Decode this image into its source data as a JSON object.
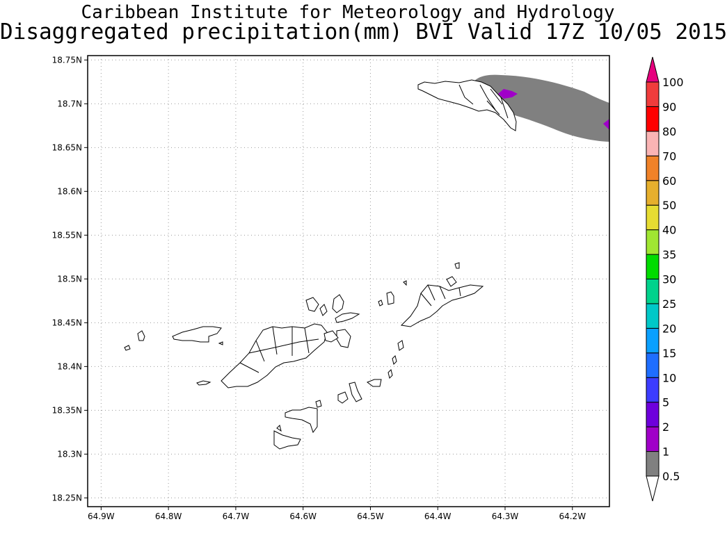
{
  "title": {
    "line1": "Caribbean Institute for Meteorology and Hydrology",
    "line2": "Disaggregated precipitation(mm) BVI Valid 17Z 10/05 2015"
  },
  "map": {
    "lon_range": [
      -64.92,
      -64.145
    ],
    "lat_range": [
      18.24,
      18.755
    ],
    "lon_ticks": [
      {
        "value": -64.9,
        "label": "64.9W"
      },
      {
        "value": -64.8,
        "label": "64.8W"
      },
      {
        "value": -64.7,
        "label": "64.7W"
      },
      {
        "value": -64.6,
        "label": "64.6W"
      },
      {
        "value": -64.5,
        "label": "64.5W"
      },
      {
        "value": -64.4,
        "label": "64.4W"
      },
      {
        "value": -64.3,
        "label": "64.3W"
      },
      {
        "value": -64.2,
        "label": "64.2W"
      }
    ],
    "lat_ticks": [
      {
        "value": 18.25,
        "label": "18.25N"
      },
      {
        "value": 18.3,
        "label": "18.3N"
      },
      {
        "value": 18.35,
        "label": "18.35N"
      },
      {
        "value": 18.4,
        "label": "18.4N"
      },
      {
        "value": 18.45,
        "label": "18.45N"
      },
      {
        "value": 18.5,
        "label": "18.5N"
      },
      {
        "value": 18.55,
        "label": "18.55N"
      },
      {
        "value": 18.6,
        "label": "18.6N"
      },
      {
        "value": 18.65,
        "label": "18.65N"
      },
      {
        "value": 18.7,
        "label": "18.7N"
      },
      {
        "value": 18.75,
        "label": "18.75N"
      }
    ],
    "grid": "dotted",
    "precip_colors": {
      "band_0_5_to_1": "#808080",
      "band_1_to_2": "#a000c8"
    }
  },
  "colorbar": {
    "levels": [
      "0.5",
      "1",
      "2",
      "5",
      "10",
      "15",
      "20",
      "25",
      "30",
      "35",
      "40",
      "50",
      "60",
      "70",
      "80",
      "90",
      "100"
    ],
    "colors": [
      "#808080",
      "#a000c8",
      "#6e00dc",
      "#3c3cff",
      "#1e6eff",
      "#0aa0ff",
      "#00c8c8",
      "#00d28c",
      "#00dc00",
      "#a0e632",
      "#e6dc32",
      "#e6af2d",
      "#f08228",
      "#fab4b4",
      "#ff0000",
      "#f03c3c"
    ],
    "under_color": "#ffffff",
    "over_color": "#e6007e"
  },
  "chart_data": {
    "type": "heatmap",
    "title": "Disaggregated precipitation(mm) BVI Valid 17Z 10/05 2015",
    "subtitle": "Caribbean Institute for Meteorology and Hydrology",
    "xlabel": "",
    "ylabel": "",
    "xlim": [
      -64.92,
      -64.145
    ],
    "ylim": [
      18.24,
      18.755
    ],
    "grid": true,
    "legend": "right colorbar",
    "color_levels_mm": [
      0.5,
      1,
      2,
      5,
      10,
      15,
      20,
      25,
      30,
      35,
      40,
      50,
      60,
      70,
      80,
      90,
      100
    ],
    "features": [
      {
        "name": "precipitation band",
        "range_mm": [
          0.5,
          1
        ],
        "lon_range": [
          -64.33,
          -64.145
        ],
        "lat_range": [
          18.675,
          18.755
        ]
      },
      {
        "name": "precipitation spot",
        "range_mm": [
          1,
          2
        ],
        "lon": -64.285,
        "lat": 18.73
      },
      {
        "name": "precipitation spot",
        "range_mm": [
          1,
          2
        ],
        "lon": -64.15,
        "lat": 18.697
      }
    ]
  }
}
